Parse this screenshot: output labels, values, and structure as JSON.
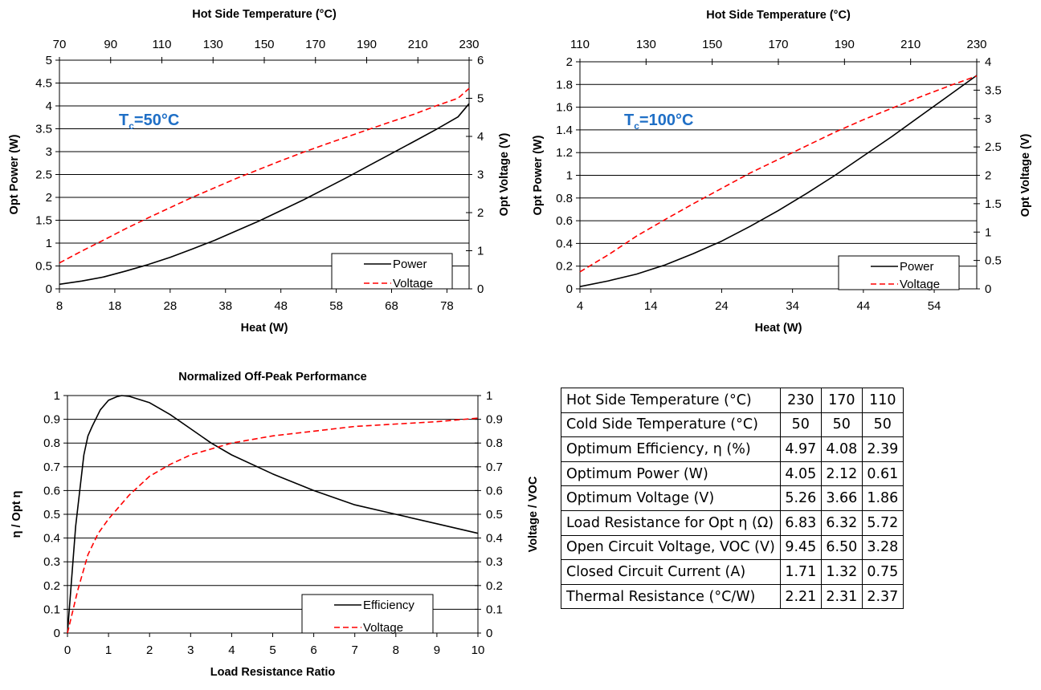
{
  "chart_data": [
    {
      "type": "line",
      "top_axis_title": "Hot Side Temperature (°C)",
      "top_ticks": [
        "70",
        "90",
        "110",
        "130",
        "150",
        "170",
        "190",
        "210",
        "230"
      ],
      "xlabel": "Heat (W)",
      "ylabel": "Opt Power (W)",
      "y2label": "Opt Voltage (V)",
      "annotation": {
        "main": "T",
        "sub": "c",
        "rest": "=50°C"
      },
      "xlim": [
        8,
        82
      ],
      "ylim": [
        0,
        5
      ],
      "y2lim": [
        0,
        6
      ],
      "x_ticks": [
        "8",
        "18",
        "28",
        "38",
        "48",
        "58",
        "68",
        "78"
      ],
      "y_ticks": [
        "0",
        "0.5",
        "1",
        "1.5",
        "2",
        "2.5",
        "3",
        "3.5",
        "4",
        "4.5",
        "5"
      ],
      "y2_ticks": [
        "0",
        "1",
        "2",
        "3",
        "4",
        "5",
        "6"
      ],
      "grid": "horizontal",
      "legend_position": "bottom-right",
      "series": [
        {
          "name": "Power",
          "axis": "left",
          "style": "solid",
          "color": "#000000",
          "x": [
            8,
            12,
            16,
            20,
            24,
            28,
            32,
            36,
            40,
            44,
            48,
            52,
            56,
            60,
            64,
            68,
            72,
            76,
            80,
            82
          ],
          "y": [
            0.1,
            0.17,
            0.26,
            0.39,
            0.53,
            0.69,
            0.87,
            1.06,
            1.27,
            1.48,
            1.71,
            1.94,
            2.19,
            2.44,
            2.7,
            2.96,
            3.22,
            3.48,
            3.76,
            4.05
          ]
        },
        {
          "name": "Voltage",
          "axis": "right",
          "style": "dashed",
          "color": "#ff0000",
          "x": [
            8,
            12,
            16,
            20,
            24,
            28,
            32,
            36,
            40,
            44,
            48,
            52,
            56,
            60,
            64,
            68,
            72,
            76,
            80,
            82
          ],
          "y": [
            0.68,
            0.99,
            1.28,
            1.58,
            1.86,
            2.13,
            2.4,
            2.65,
            2.9,
            3.13,
            3.36,
            3.58,
            3.79,
            3.99,
            4.19,
            4.39,
            4.58,
            4.8,
            5.0,
            5.26
          ]
        }
      ]
    },
    {
      "type": "line",
      "top_axis_title": "Hot Side Temperature (°C)",
      "top_ticks": [
        "110",
        "130",
        "150",
        "170",
        "190",
        "210",
        "230"
      ],
      "xlabel": "Heat (W)",
      "ylabel": "Opt Power (W)",
      "y2label": "Opt Voltage (V)",
      "annotation": {
        "main": "T",
        "sub": "c",
        "rest": "=100°C"
      },
      "xlim": [
        4,
        60
      ],
      "ylim": [
        0,
        2
      ],
      "y2lim": [
        0,
        4
      ],
      "x_ticks": [
        "4",
        "14",
        "24",
        "34",
        "44",
        "54"
      ],
      "y_ticks": [
        "0",
        "0.2",
        "0.4",
        "0.6",
        "0.8",
        "1",
        "1.2",
        "1.4",
        "1.6",
        "1.8",
        "2"
      ],
      "y2_ticks": [
        "0",
        "0.5",
        "1",
        "1.5",
        "2",
        "2.5",
        "3",
        "3.5",
        "4"
      ],
      "grid": "horizontal",
      "legend_position": "bottom-right",
      "series": [
        {
          "name": "Power",
          "axis": "left",
          "style": "solid",
          "color": "#000000",
          "x": [
            4,
            8,
            12,
            16,
            20,
            24,
            28,
            32,
            36,
            40,
            44,
            48,
            52,
            56,
            60
          ],
          "y": [
            0.02,
            0.07,
            0.13,
            0.21,
            0.31,
            0.42,
            0.55,
            0.69,
            0.84,
            1.0,
            1.17,
            1.34,
            1.52,
            1.7,
            1.88
          ]
        },
        {
          "name": "Voltage",
          "axis": "right",
          "style": "dashed",
          "color": "#ff0000",
          "x": [
            4,
            8,
            12,
            16,
            20,
            24,
            28,
            32,
            36,
            40,
            44,
            48,
            52,
            56,
            60
          ],
          "y": [
            0.3,
            0.6,
            0.93,
            1.22,
            1.5,
            1.77,
            2.04,
            2.28,
            2.52,
            2.76,
            2.98,
            3.18,
            3.38,
            3.57,
            3.75
          ]
        }
      ]
    },
    {
      "type": "line",
      "title": "Normalized Off-Peak Performance",
      "xlabel": "Load Resistance Ratio",
      "ylabel": "η / Opt η",
      "y2label": "Voltage / VOC",
      "xlim": [
        0,
        10
      ],
      "ylim": [
        0,
        1
      ],
      "y2lim": [
        0,
        1
      ],
      "x_ticks": [
        "0",
        "1",
        "2",
        "3",
        "4",
        "5",
        "6",
        "7",
        "8",
        "9",
        "10"
      ],
      "y_ticks": [
        "0",
        "0.1",
        "0.2",
        "0.3",
        "0.4",
        "0.5",
        "0.6",
        "0.7",
        "0.8",
        "0.9",
        "1"
      ],
      "y2_ticks": [
        "0",
        "0.1",
        "0.2",
        "0.3",
        "0.4",
        "0.5",
        "0.6",
        "0.7",
        "0.8",
        "0.9",
        "1"
      ],
      "grid": "horizontal",
      "legend_position": "bottom-right",
      "series": [
        {
          "name": "Efficiency",
          "axis": "left",
          "style": "solid",
          "color": "#000000",
          "x": [
            0,
            0.2,
            0.4,
            0.5,
            0.6,
            0.8,
            1.0,
            1.2,
            1.32,
            1.5,
            2.0,
            2.5,
            3.0,
            3.5,
            4.0,
            5.0,
            6.0,
            7.0,
            8.0,
            9.0,
            10.0
          ],
          "y": [
            0,
            0.45,
            0.75,
            0.83,
            0.87,
            0.94,
            0.98,
            0.995,
            1.0,
            0.997,
            0.97,
            0.92,
            0.86,
            0.8,
            0.75,
            0.67,
            0.6,
            0.54,
            0.5,
            0.46,
            0.42
          ]
        },
        {
          "name": "Voltage",
          "axis": "right",
          "style": "dashed",
          "color": "#ff0000",
          "x": [
            0,
            0.25,
            0.5,
            0.75,
            1,
            1.5,
            2,
            2.5,
            3,
            4,
            5,
            6,
            7,
            8,
            9,
            10
          ],
          "y": [
            0,
            0.18,
            0.33,
            0.42,
            0.48,
            0.58,
            0.66,
            0.71,
            0.75,
            0.8,
            0.83,
            0.85,
            0.87,
            0.88,
            0.89,
            0.905
          ]
        }
      ]
    }
  ],
  "table": {
    "rows": [
      {
        "label": "Hot Side Temperature (°C)",
        "values": [
          "230",
          "170",
          "110"
        ]
      },
      {
        "label": "Cold Side Temperature (°C)",
        "values": [
          "50",
          "50",
          "50"
        ]
      },
      {
        "label": "Optimum Efficiency, η (%)",
        "values": [
          "4.97",
          "4.08",
          "2.39"
        ]
      },
      {
        "label": "Optimum Power (W)",
        "values": [
          "4.05",
          "2.12",
          "0.61"
        ]
      },
      {
        "label": "Optimum Voltage (V)",
        "values": [
          "5.26",
          "3.66",
          "1.86"
        ]
      },
      {
        "label": "Load Resistance for Opt η (Ω)",
        "values": [
          "6.83",
          "6.32",
          "5.72"
        ]
      },
      {
        "label": "Open Circuit Voltage, VOC (V)",
        "values": [
          "9.45",
          "6.50",
          "3.28"
        ]
      },
      {
        "label": "Closed Circuit Current (A)",
        "values": [
          "1.71",
          "1.32",
          "0.75"
        ]
      },
      {
        "label": "Thermal Resistance (°C/W)",
        "values": [
          "2.21",
          "2.31",
          "2.37"
        ]
      }
    ]
  }
}
